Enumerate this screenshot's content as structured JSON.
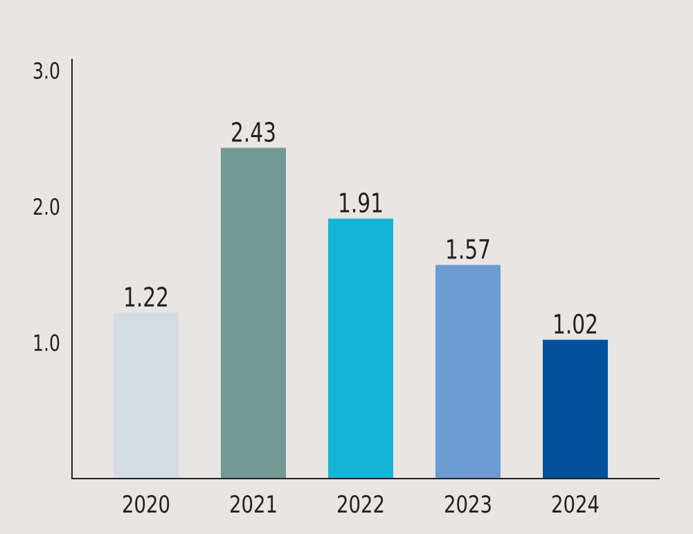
{
  "colors": {
    "background": "#e9e5e2",
    "axis": "#231f20",
    "text": "#231f20"
  },
  "chart_data": {
    "type": "bar",
    "title": "",
    "xlabel": "",
    "ylabel": "",
    "categories": [
      "2020",
      "2021",
      "2022",
      "2023",
      "2024"
    ],
    "values": [
      1.22,
      2.43,
      1.91,
      1.57,
      1.02
    ],
    "value_labels": [
      "1.22",
      "2.43",
      "1.91",
      "1.57",
      "1.02"
    ],
    "bar_colors": [
      "#d4dce4",
      "#739995",
      "#14b5d7",
      "#6d9cd2",
      "#02519d"
    ],
    "ylim": [
      0,
      3.0
    ],
    "yticks": [
      1.0,
      2.0,
      3.0
    ],
    "ytick_labels": [
      "1.0",
      "2.0",
      "3.0"
    ],
    "grid": false,
    "legend": "none"
  }
}
